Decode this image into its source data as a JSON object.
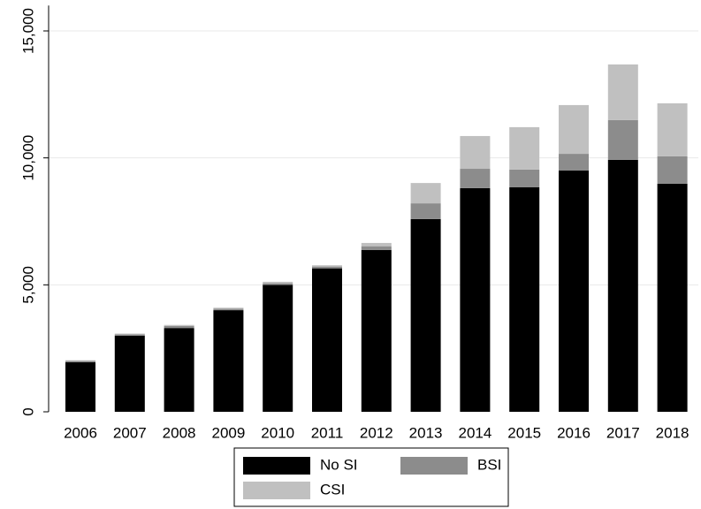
{
  "chart_data": {
    "type": "stacked_bar",
    "categories": [
      "2006",
      "2007",
      "2008",
      "2009",
      "2010",
      "2011",
      "2012",
      "2013",
      "2014",
      "2015",
      "2016",
      "2017",
      "2018"
    ],
    "series": [
      {
        "name": "No SI",
        "color": "#000000",
        "values": [
          1950,
          3000,
          3300,
          4000,
          5000,
          5650,
          6370,
          7590,
          8810,
          8840,
          9500,
          9920,
          8980
        ]
      },
      {
        "name": "BSI",
        "color": "#8c8c8c",
        "values": [
          50,
          50,
          80,
          60,
          60,
          70,
          150,
          620,
          760,
          700,
          660,
          1570,
          1080
        ]
      },
      {
        "name": "CSI",
        "color": "#c0c0c0",
        "values": [
          30,
          30,
          40,
          40,
          60,
          50,
          130,
          800,
          1290,
          1670,
          1920,
          2190,
          2090
        ]
      }
    ],
    "ylim": [
      0,
      16000
    ],
    "yticks": [
      0,
      {
        "value": 5000,
        "label": "5,000"
      },
      {
        "value": 10000,
        "label": "10,000"
      },
      {
        "value": 15000,
        "label": "15,000"
      }
    ],
    "grid": true,
    "legend": "bottom"
  }
}
